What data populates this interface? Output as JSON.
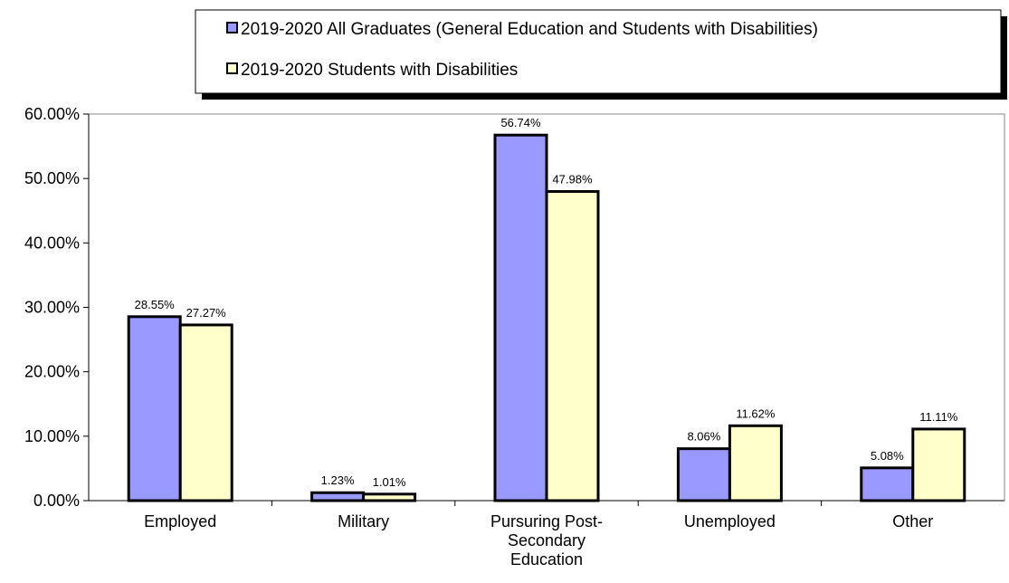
{
  "chart_data": {
    "type": "bar",
    "categories": [
      [
        "Employed"
      ],
      [
        "Military"
      ],
      [
        "Pursuring Post-",
        "Secondary",
        "Education"
      ],
      [
        "Unemployed"
      ],
      [
        "Other"
      ]
    ],
    "series": [
      {
        "name": "2019-2020 All Graduates (General Education and Students with Disabilities)",
        "values": [
          28.55,
          1.23,
          56.74,
          8.06,
          5.08
        ],
        "labels": [
          "28.55%",
          "1.23%",
          "56.74%",
          "8.06%",
          "5.08%"
        ],
        "color": "#9999ff"
      },
      {
        "name": "2019-2020 Students with Disabilities",
        "values": [
          27.27,
          1.01,
          47.98,
          11.62,
          11.11
        ],
        "labels": [
          "27.27%",
          "1.01%",
          "47.98%",
          "11.62%",
          "11.11%"
        ],
        "color": "#ffffcc"
      }
    ],
    "ylim": [
      0,
      60
    ],
    "yticks": [
      0,
      10,
      20,
      30,
      40,
      50,
      60
    ],
    "ytick_labels": [
      "0.00%",
      "10.00%",
      "20.00%",
      "30.00%",
      "40.00%",
      "50.00%",
      "60.00%"
    ],
    "grid": false,
    "legend_position": "top"
  }
}
